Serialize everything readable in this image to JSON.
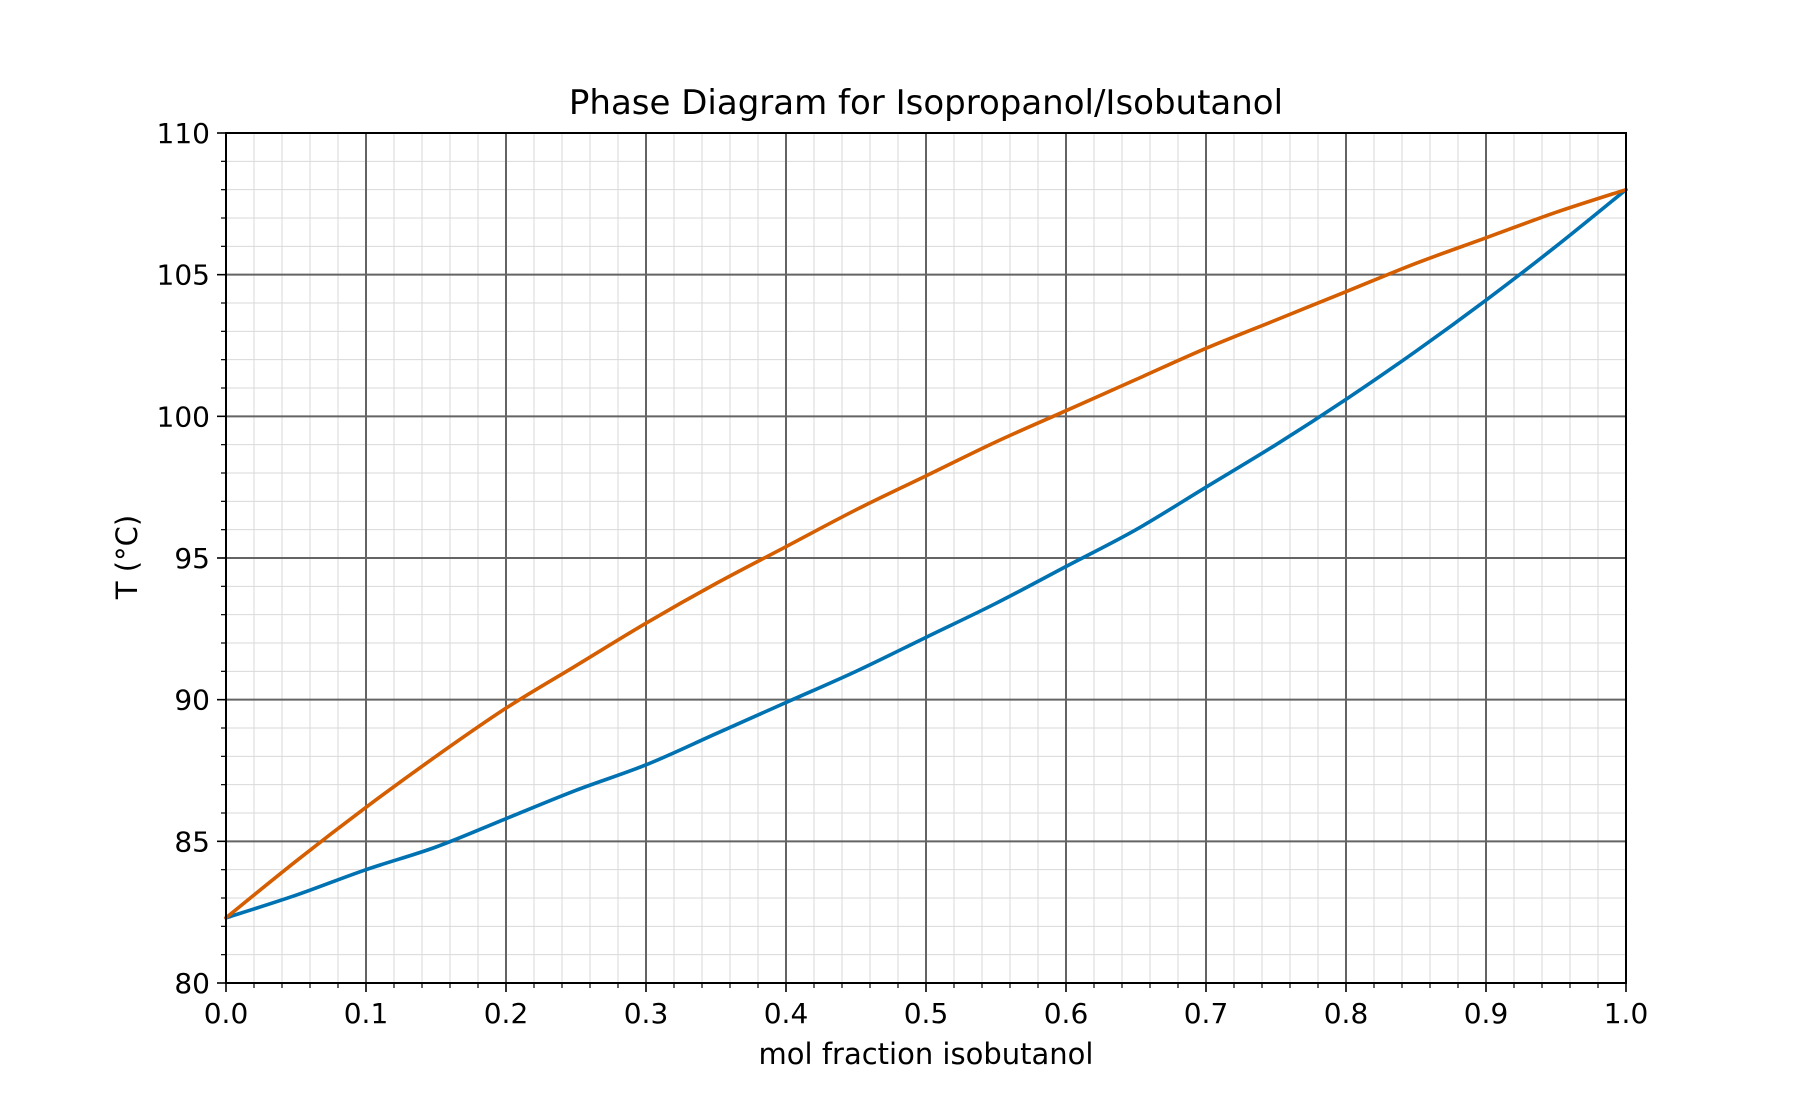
{
  "chart_data": {
    "type": "line",
    "title": "Phase Diagram for Isopropanol/Isobutanol",
    "xlabel": "mol fraction isobutanol",
    "ylabel": "T (°C)",
    "xlim": [
      0.0,
      1.0
    ],
    "ylim": [
      80,
      110
    ],
    "grid": "major and minor",
    "legend": "none",
    "x_ticks": [
      "0.0",
      "0.1",
      "0.2",
      "0.3",
      "0.4",
      "0.5",
      "0.6",
      "0.7",
      "0.8",
      "0.9",
      "1.0"
    ],
    "y_ticks": [
      "80",
      "85",
      "90",
      "95",
      "100",
      "105",
      "110"
    ],
    "x": [
      0.0,
      0.05,
      0.1,
      0.15,
      0.2,
      0.25,
      0.3,
      0.35,
      0.4,
      0.45,
      0.5,
      0.55,
      0.6,
      0.65,
      0.7,
      0.75,
      0.8,
      0.85,
      0.9,
      0.95,
      1.0
    ],
    "series": [
      {
        "color": "#0072b2",
        "values": [
          82.3,
          83.1,
          84.0,
          84.8,
          85.8,
          86.8,
          87.7,
          88.8,
          89.9,
          91.0,
          92.2,
          93.4,
          94.7,
          96.0,
          97.5,
          99.0,
          100.6,
          102.3,
          104.1,
          106.0,
          108.0
        ]
      },
      {
        "color": "#d55e00",
        "values": [
          82.3,
          84.3,
          86.2,
          88.0,
          89.7,
          91.2,
          92.7,
          94.1,
          95.4,
          96.7,
          97.9,
          99.1,
          100.2,
          101.3,
          102.4,
          103.4,
          104.4,
          105.4,
          106.3,
          107.2,
          108.0
        ]
      }
    ]
  },
  "colors": {
    "major_grid": "#646464",
    "minor_grid": "#d9d9d9",
    "axes": "#000000"
  }
}
